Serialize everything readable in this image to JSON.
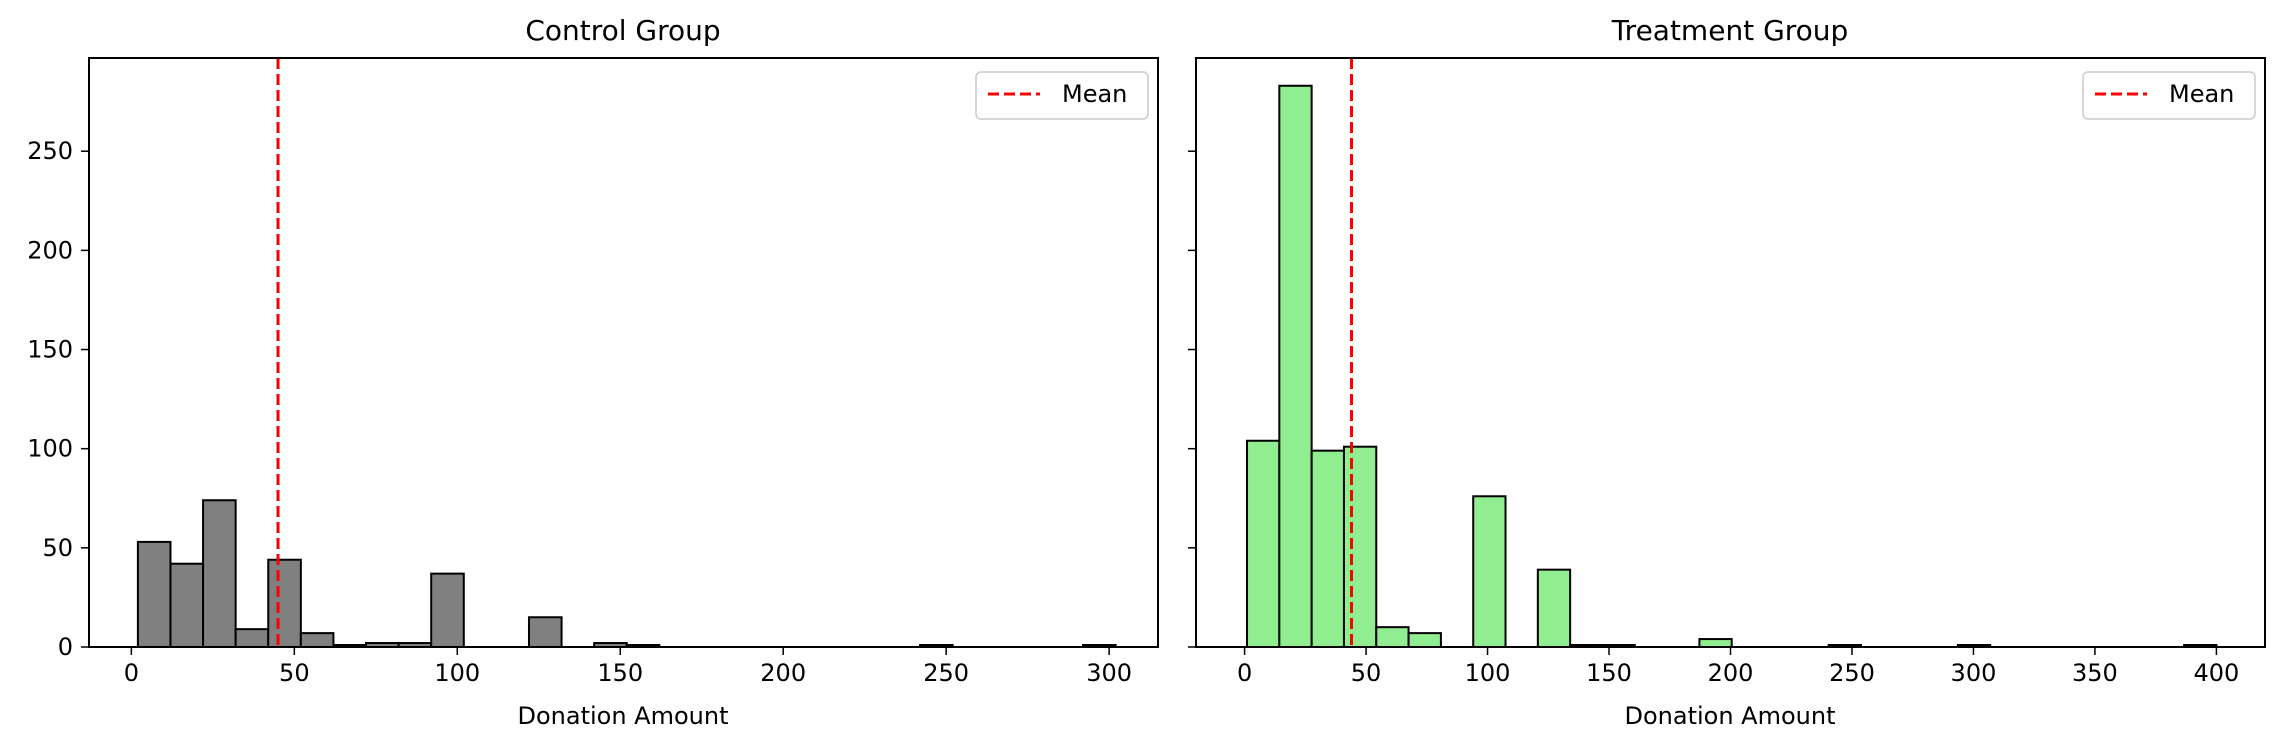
{
  "chart_data": [
    {
      "type": "bar",
      "title": "Control Group",
      "xlabel": "Donation Amount",
      "ylabel": "",
      "bin_width": 10,
      "xlim": [
        -13,
        315
      ],
      "ylim": [
        0,
        297
      ],
      "xticks": [
        0,
        50,
        100,
        150,
        200,
        250,
        300
      ],
      "yticks": [
        0,
        50,
        100,
        150,
        200,
        250
      ],
      "bar_color": "#808080",
      "edge_color": "#000000",
      "series": [
        {
          "bin_starts": [
            2,
            12,
            22,
            32,
            42,
            52,
            62,
            72,
            82,
            92,
            122,
            142,
            152,
            242,
            292
          ],
          "values": [
            53,
            42,
            74,
            9,
            44,
            7,
            1,
            2,
            2,
            37,
            15,
            2,
            1,
            1,
            1
          ]
        }
      ],
      "mean_line": {
        "x": 45,
        "color": "#ff0000"
      },
      "legend": {
        "label": "Mean",
        "position": "top-right"
      }
    },
    {
      "type": "bar",
      "title": "Treatment Group",
      "xlabel": "Donation Amount",
      "ylabel": "",
      "bin_width": 13.3,
      "xlim": [
        -20,
        420
      ],
      "ylim": [
        0,
        297
      ],
      "xticks": [
        0,
        50,
        100,
        150,
        200,
        250,
        300,
        350,
        400
      ],
      "yticks": [
        0,
        50,
        100,
        150,
        200,
        250
      ],
      "bar_color": "#90ee90",
      "edge_color": "#000000",
      "series": [
        {
          "bin_starts": [
            1,
            14.3,
            27.6,
            40.9,
            54.2,
            67.5,
            94.1,
            120.7,
            134,
            147.3,
            187.2,
            240.4,
            293.6,
            386.7
          ],
          "values": [
            104,
            283,
            99,
            101,
            10,
            7,
            76,
            39,
            1,
            1,
            4,
            1,
            1,
            1
          ]
        }
      ],
      "mean_line": {
        "x": 44,
        "color": "#ff0000"
      },
      "legend": {
        "label": "Mean",
        "position": "top-right"
      }
    }
  ]
}
